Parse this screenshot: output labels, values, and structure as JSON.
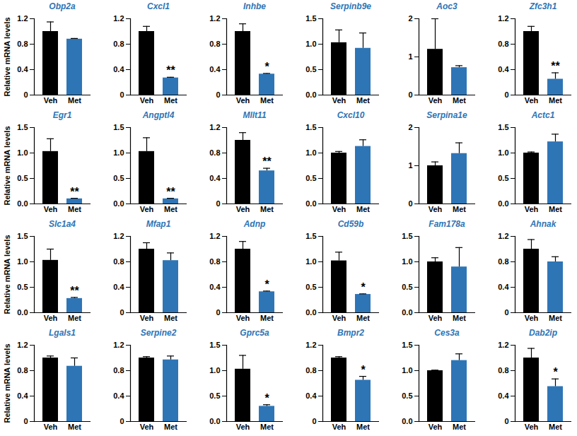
{
  "chart_data": [
    {
      "type": "bar",
      "title": "Obp2a",
      "y_label": "Relative mRNA levels",
      "categories": [
        "Veh",
        "Met"
      ],
      "values": [
        1.0,
        0.88
      ],
      "errors": [
        0.15,
        0.01
      ],
      "colors": [
        "#000000",
        "#2e75b6"
      ],
      "ylim": [
        0,
        1.2
      ],
      "yticks": [
        0,
        0.4,
        0.8,
        1.2
      ]
    },
    {
      "type": "bar",
      "title": "Cxcl1",
      "categories": [
        "Veh",
        "Met"
      ],
      "values": [
        1.0,
        0.27
      ],
      "errors": [
        0.08,
        0.01
      ],
      "colors": [
        "#000000",
        "#2e75b6"
      ],
      "ylim": [
        0,
        1.2
      ],
      "yticks": [
        0,
        0.4,
        0.8,
        1.2
      ],
      "annotations": [
        {
          "category": "Met",
          "text": "**"
        }
      ]
    },
    {
      "type": "bar",
      "title": "Inhbe",
      "categories": [
        "Veh",
        "Met"
      ],
      "values": [
        1.0,
        0.33
      ],
      "errors": [
        0.12,
        0.01
      ],
      "colors": [
        "#000000",
        "#2e75b6"
      ],
      "ylim": [
        0,
        1.2
      ],
      "yticks": [
        0,
        0.4,
        0.8,
        1.2
      ],
      "annotations": [
        {
          "category": "Met",
          "text": "*"
        }
      ]
    },
    {
      "type": "bar",
      "title": "Serpinb9e",
      "categories": [
        "Veh",
        "Met"
      ],
      "values": [
        1.03,
        0.92
      ],
      "errors": [
        0.25,
        0.3
      ],
      "colors": [
        "#000000",
        "#2e75b6"
      ],
      "ylim": [
        0,
        1.5
      ],
      "yticks": [
        {
          "value": 0,
          "label": "0.0"
        },
        0.5,
        {
          "value": 1,
          "label": "1.0"
        },
        1.5
      ]
    },
    {
      "type": "bar",
      "title": "Aoc3",
      "categories": [
        "Veh",
        "Met"
      ],
      "values": [
        1.2,
        0.72
      ],
      "errors": [
        0.8,
        0.05
      ],
      "colors": [
        "#000000",
        "#2e75b6"
      ],
      "ylim": [
        0,
        2
      ],
      "yticks": [
        0,
        1,
        2
      ]
    },
    {
      "type": "bar",
      "title": "Zfc3h1",
      "categories": [
        "Veh",
        "Met"
      ],
      "values": [
        1.0,
        0.25
      ],
      "errors": [
        0.08,
        0.1
      ],
      "colors": [
        "#000000",
        "#2e75b6"
      ],
      "ylim": [
        0,
        1.2
      ],
      "yticks": [
        0,
        0.4,
        0.8,
        1.2
      ],
      "annotations": [
        {
          "category": "Met",
          "text": "**"
        }
      ]
    },
    {
      "type": "bar",
      "title": "Egr1",
      "y_label": "Relative mRNA levels",
      "categories": [
        "Veh",
        "Met"
      ],
      "values": [
        1.03,
        0.1
      ],
      "errors": [
        0.25,
        0.01
      ],
      "colors": [
        "#000000",
        "#2e75b6"
      ],
      "ylim": [
        0,
        1.5
      ],
      "yticks": [
        {
          "value": 0,
          "label": "0.0"
        },
        0.5,
        {
          "value": 1,
          "label": "1.0"
        },
        1.5
      ],
      "annotations": [
        {
          "category": "Met",
          "text": "**"
        }
      ]
    },
    {
      "type": "bar",
      "title": "Angptl4",
      "categories": [
        "Veh",
        "Met"
      ],
      "values": [
        1.03,
        0.1
      ],
      "errors": [
        0.27,
        0.01
      ],
      "colors": [
        "#000000",
        "#2e75b6"
      ],
      "ylim": [
        0,
        1.5
      ],
      "yticks": [
        {
          "value": 0,
          "label": "0.0"
        },
        0.5,
        {
          "value": 1,
          "label": "1.0"
        },
        1.5
      ],
      "annotations": [
        {
          "category": "Met",
          "text": "**"
        }
      ]
    },
    {
      "type": "bar",
      "title": "Mllt11",
      "categories": [
        "Veh",
        "Met"
      ],
      "values": [
        1.0,
        0.52
      ],
      "errors": [
        0.12,
        0.04
      ],
      "colors": [
        "#000000",
        "#2e75b6"
      ],
      "ylim": [
        0,
        1.2
      ],
      "yticks": [
        0,
        0.4,
        0.8,
        1.2
      ],
      "annotations": [
        {
          "category": "Met",
          "text": "**"
        }
      ]
    },
    {
      "type": "bar",
      "title": "Cxcl10",
      "categories": [
        "Veh",
        "Met"
      ],
      "values": [
        1.0,
        1.13
      ],
      "errors": [
        0.03,
        0.13
      ],
      "colors": [
        "#000000",
        "#2e75b6"
      ],
      "ylim": [
        0,
        1.5
      ],
      "yticks": [
        {
          "value": 0,
          "label": "0.0"
        },
        0.5,
        {
          "value": 1,
          "label": "1.0"
        },
        1.5
      ]
    },
    {
      "type": "bar",
      "title": "Serpina1e",
      "categories": [
        "Veh",
        "Met"
      ],
      "values": [
        1.0,
        1.32
      ],
      "errors": [
        0.1,
        0.28
      ],
      "colors": [
        "#000000",
        "#2e75b6"
      ],
      "ylim": [
        0,
        2
      ],
      "yticks": [
        0,
        1,
        2
      ]
    },
    {
      "type": "bar",
      "title": "Actc1",
      "categories": [
        "Veh",
        "Met"
      ],
      "values": [
        1.0,
        1.22
      ],
      "errors": [
        0.02,
        0.15
      ],
      "colors": [
        "#000000",
        "#2e75b6"
      ],
      "ylim": [
        0,
        1.5
      ],
      "yticks": [
        {
          "value": 0,
          "label": "0.0"
        },
        0.5,
        {
          "value": 1,
          "label": "1.0"
        },
        1.5
      ]
    },
    {
      "type": "bar",
      "title": "Slc1a4",
      "y_label": "Relative mRNA levels",
      "categories": [
        "Veh",
        "Met"
      ],
      "values": [
        1.03,
        0.28
      ],
      "errors": [
        0.22,
        0.02
      ],
      "colors": [
        "#000000",
        "#2e75b6"
      ],
      "ylim": [
        0,
        1.5
      ],
      "yticks": [
        {
          "value": 0,
          "label": "0.0"
        },
        0.5,
        {
          "value": 1,
          "label": "1.0"
        },
        1.5
      ],
      "annotations": [
        {
          "category": "Met",
          "text": "**"
        }
      ]
    },
    {
      "type": "bar",
      "title": "Mfap1",
      "categories": [
        "Veh",
        "Met"
      ],
      "values": [
        1.0,
        0.82
      ],
      "errors": [
        0.1,
        0.12
      ],
      "colors": [
        "#000000",
        "#2e75b6"
      ],
      "ylim": [
        0,
        1.2
      ],
      "yticks": [
        0,
        0.4,
        0.8,
        1.2
      ]
    },
    {
      "type": "bar",
      "title": "Adnp",
      "categories": [
        "Veh",
        "Met"
      ],
      "values": [
        1.0,
        0.33
      ],
      "errors": [
        0.12,
        0.01
      ],
      "colors": [
        "#000000",
        "#2e75b6"
      ],
      "ylim": [
        0,
        1.2
      ],
      "yticks": [
        0,
        0.4,
        0.8,
        1.2
      ],
      "annotations": [
        {
          "category": "Met",
          "text": "*"
        }
      ]
    },
    {
      "type": "bar",
      "title": "Cd59b",
      "categories": [
        "Veh",
        "Met"
      ],
      "values": [
        1.02,
        0.36
      ],
      "errors": [
        0.17,
        0.01
      ],
      "colors": [
        "#000000",
        "#2e75b6"
      ],
      "ylim": [
        0,
        1.5
      ],
      "yticks": [
        {
          "value": 0,
          "label": "0.0"
        },
        0.5,
        {
          "value": 1,
          "label": "1.0"
        },
        1.5
      ],
      "annotations": [
        {
          "category": "Met",
          "text": "*"
        }
      ]
    },
    {
      "type": "bar",
      "title": "Fam178a",
      "categories": [
        "Veh",
        "Met"
      ],
      "values": [
        1.0,
        0.9
      ],
      "errors": [
        0.08,
        0.38
      ],
      "colors": [
        "#000000",
        "#2e75b6"
      ],
      "ylim": [
        0,
        1.5
      ],
      "yticks": [
        {
          "value": 0,
          "label": "0.0"
        },
        0.5,
        {
          "value": 1,
          "label": "1.0"
        },
        1.5
      ]
    },
    {
      "type": "bar",
      "title": "Ahnak",
      "categories": [
        "Veh",
        "Met"
      ],
      "values": [
        1.0,
        0.8
      ],
      "errors": [
        0.15,
        0.08
      ],
      "colors": [
        "#000000",
        "#2e75b6"
      ],
      "ylim": [
        0,
        1.2
      ],
      "yticks": [
        0,
        0.4,
        0.8,
        1.2
      ]
    },
    {
      "type": "bar",
      "title": "Lgals1",
      "y_label": "Relative mRNA levels",
      "categories": [
        "Veh",
        "Met"
      ],
      "values": [
        1.0,
        0.87
      ],
      "errors": [
        0.03,
        0.13
      ],
      "colors": [
        "#000000",
        "#2e75b6"
      ],
      "ylim": [
        0,
        1.2
      ],
      "yticks": [
        0,
        0.4,
        0.8,
        1.2
      ]
    },
    {
      "type": "bar",
      "title": "Serpine2",
      "categories": [
        "Veh",
        "Met"
      ],
      "values": [
        1.0,
        0.97
      ],
      "errors": [
        0.02,
        0.06
      ],
      "colors": [
        "#000000",
        "#2e75b6"
      ],
      "ylim": [
        0,
        1.2
      ],
      "yticks": [
        0,
        0.4,
        0.8,
        1.2
      ]
    },
    {
      "type": "bar",
      "title": "Gprc5a",
      "categories": [
        "Veh",
        "Met"
      ],
      "values": [
        1.03,
        0.3
      ],
      "errors": [
        0.27,
        0.03
      ],
      "colors": [
        "#000000",
        "#2e75b6"
      ],
      "ylim": [
        0,
        1.5
      ],
      "yticks": [
        {
          "value": 0,
          "label": "0.0"
        },
        0.5,
        {
          "value": 1,
          "label": "1.0"
        },
        1.5
      ],
      "annotations": [
        {
          "category": "Met",
          "text": "*"
        }
      ]
    },
    {
      "type": "bar",
      "title": "Bmpr2",
      "categories": [
        "Veh",
        "Met"
      ],
      "values": [
        1.0,
        0.65
      ],
      "errors": [
        0.02,
        0.06
      ],
      "colors": [
        "#000000",
        "#2e75b6"
      ],
      "ylim": [
        0,
        1.2
      ],
      "yticks": [
        0,
        0.4,
        0.8,
        1.2
      ],
      "annotations": [
        {
          "category": "Met",
          "text": "*"
        }
      ]
    },
    {
      "type": "bar",
      "title": "Ces3a",
      "categories": [
        "Veh",
        "Met"
      ],
      "values": [
        1.0,
        1.2
      ],
      "errors": [
        0.01,
        0.13
      ],
      "colors": [
        "#000000",
        "#2e75b6"
      ],
      "ylim": [
        0,
        1.5
      ],
      "yticks": [
        {
          "value": 0,
          "label": "0.0"
        },
        0.5,
        {
          "value": 1,
          "label": "1.0"
        },
        1.5
      ]
    },
    {
      "type": "bar",
      "title": "Dab2ip",
      "categories": [
        "Veh",
        "Met"
      ],
      "values": [
        1.0,
        0.55
      ],
      "errors": [
        0.15,
        0.12
      ],
      "colors": [
        "#000000",
        "#2e75b6"
      ],
      "ylim": [
        0,
        1.2
      ],
      "yticks": [
        0,
        0.4,
        0.8,
        1.2
      ],
      "annotations": [
        {
          "category": "Met",
          "text": "*"
        }
      ]
    }
  ]
}
